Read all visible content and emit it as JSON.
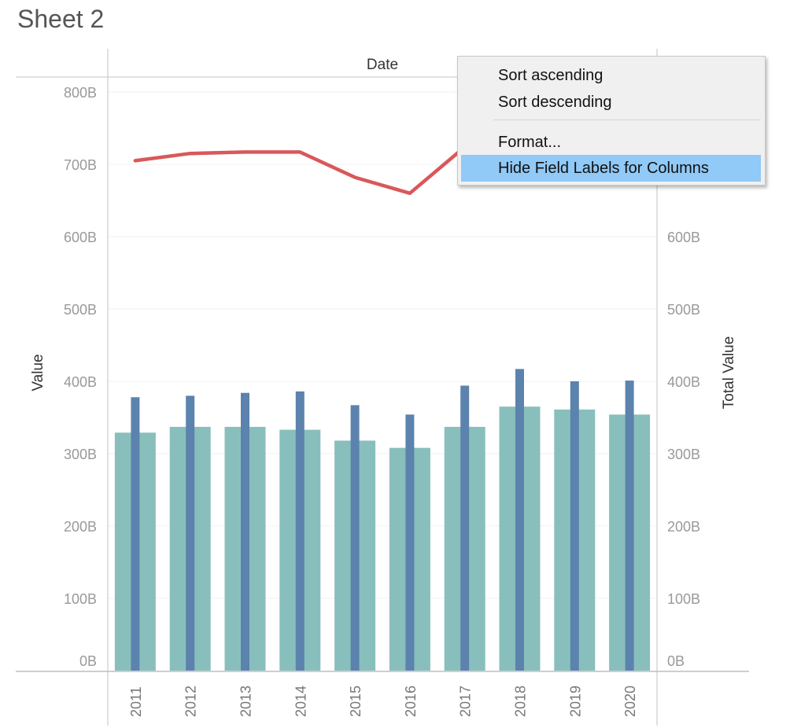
{
  "sheet": {
    "title": "Sheet 2"
  },
  "chart_data": {
    "type": "bar",
    "column_header": "Date",
    "categories": [
      "2011",
      "2012",
      "2013",
      "2014",
      "2015",
      "2016",
      "2017",
      "2018",
      "2019",
      "2020"
    ],
    "y_left": {
      "label": "Value",
      "ticks": [
        "0B",
        "100B",
        "200B",
        "300B",
        "400B",
        "500B",
        "600B",
        "700B",
        "800B"
      ],
      "range": [
        0,
        800
      ]
    },
    "y_right": {
      "label": "Total Value",
      "ticks": [
        "0B",
        "100B",
        "200B",
        "300B",
        "400B",
        "500B",
        "600B"
      ],
      "range": [
        0,
        800
      ]
    },
    "series": [
      {
        "type": "bar",
        "axis": "left",
        "color": "#88bfbc",
        "values": [
          329,
          337,
          337,
          333,
          318,
          308,
          337,
          365,
          361,
          354
        ]
      },
      {
        "type": "bar",
        "axis": "left",
        "color": "#5b83ad",
        "values": [
          378,
          380,
          384,
          386,
          367,
          354,
          394,
          417,
          400,
          401
        ]
      },
      {
        "type": "line",
        "axis": "left",
        "color": "#d9585a",
        "values": [
          705,
          715,
          717,
          717,
          682,
          660,
          724,
          null,
          null,
          null
        ]
      }
    ],
    "grid": true
  },
  "context_menu": {
    "items": [
      {
        "label": "Sort ascending",
        "highlighted": false
      },
      {
        "label": "Sort descending",
        "highlighted": false
      },
      {
        "label": "Format...",
        "highlighted": false
      },
      {
        "label": "Hide Field Labels for Columns",
        "highlighted": true
      }
    ]
  }
}
